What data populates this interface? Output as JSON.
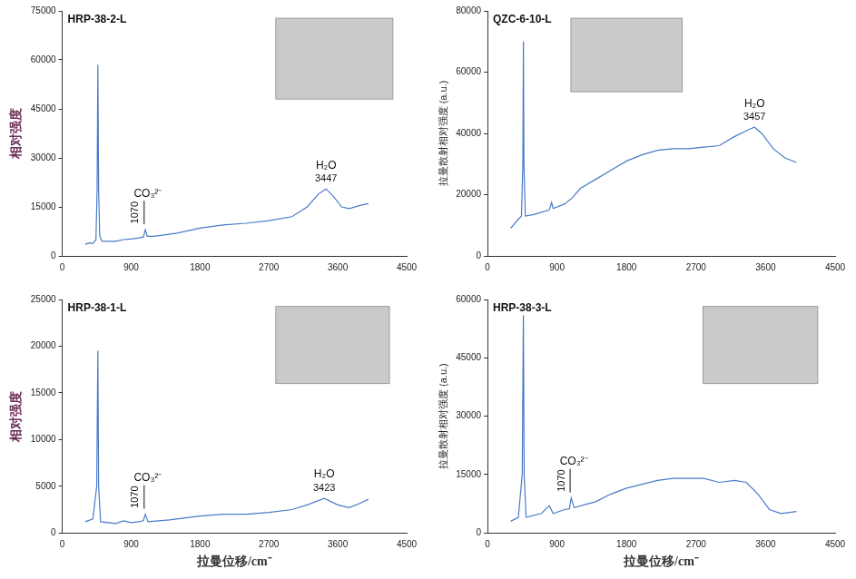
{
  "chart_data": [
    {
      "type": "line",
      "title": "HRP-38-2-L",
      "y_label": "相对强度",
      "color": "#4a7ac8",
      "grid": false,
      "x": [
        300,
        350,
        400,
        440,
        455,
        465,
        475,
        490,
        520,
        600,
        700,
        800,
        900,
        1000,
        1060,
        1085,
        1110,
        1200,
        1500,
        1800,
        2100,
        2400,
        2700,
        3000,
        3200,
        3350,
        3447,
        3550,
        3650,
        3750,
        3900,
        4000
      ],
      "values": [
        3500,
        4000,
        3800,
        5000,
        20000,
        58500,
        20000,
        6000,
        4500,
        4500,
        4500,
        5000,
        5200,
        5500,
        5800,
        8000,
        6000,
        6000,
        7000,
        8500,
        9500,
        10000,
        10800,
        12000,
        15000,
        19000,
        20500,
        18000,
        15000,
        14500,
        15500,
        16000
      ],
      "xlim": [
        0,
        4500
      ],
      "xticks": [
        0,
        900,
        1800,
        2700,
        3600,
        4500
      ],
      "ylim": [
        0,
        75000
      ],
      "yticks": [
        0,
        15000,
        30000,
        45000,
        60000,
        75000
      ],
      "annotations": [
        {
          "text": "CO₃²⁻",
          "x": 1070,
          "marker": "line"
        },
        {
          "text": "H₂O",
          "x": 3447
        }
      ]
    },
    {
      "type": "line",
      "title": "QZC-6-10-L",
      "y_label": "拉曼散射相对强度 (a.u.)",
      "color": "#4a7ac8",
      "grid": false,
      "x": [
        300,
        400,
        440,
        458,
        465,
        472,
        490,
        600,
        800,
        830,
        850,
        1000,
        1100,
        1200,
        1400,
        1600,
        1800,
        2000,
        2200,
        2400,
        2600,
        2800,
        3000,
        3200,
        3400,
        3457,
        3550,
        3700,
        3850,
        4000
      ],
      "values": [
        9000,
        12000,
        13000,
        30000,
        70000,
        30000,
        13000,
        13500,
        15000,
        17500,
        15500,
        17000,
        19000,
        22000,
        25000,
        28000,
        31000,
        33000,
        34500,
        35000,
        35000,
        35500,
        36000,
        39000,
        41500,
        42000,
        40000,
        35000,
        32000,
        30500
      ],
      "xlim": [
        0,
        4500
      ],
      "xticks": [
        0,
        900,
        1800,
        2700,
        3600,
        4500
      ],
      "ylim": [
        0,
        80000
      ],
      "yticks": [
        0,
        20000,
        40000,
        60000,
        80000
      ],
      "annotations": [
        {
          "text": "H₂O",
          "x": 3457
        }
      ]
    },
    {
      "type": "line",
      "title": "HRP-38-1-L",
      "y_label": "相对强度",
      "x_label": "拉曼位移/cm⁻",
      "color": "#4a7ac8",
      "grid": false,
      "x": [
        300,
        400,
        450,
        465,
        475,
        500,
        700,
        800,
        900,
        1000,
        1060,
        1085,
        1120,
        1400,
        1800,
        2100,
        2400,
        2700,
        3000,
        3200,
        3423,
        3600,
        3750,
        3900,
        4000
      ],
      "values": [
        1200,
        1500,
        5000,
        19500,
        5000,
        1200,
        1000,
        1300,
        1100,
        1200,
        1300,
        2000,
        1200,
        1400,
        1800,
        2000,
        2000,
        2200,
        2500,
        3000,
        3700,
        3000,
        2700,
        3200,
        3600
      ],
      "xlim": [
        0,
        4500
      ],
      "xticks": [
        0,
        900,
        1800,
        2700,
        3600,
        4500
      ],
      "ylim": [
        0,
        25000
      ],
      "yticks": [
        0,
        5000,
        10000,
        15000,
        20000,
        25000
      ],
      "annotations": [
        {
          "text": "CO₃²⁻",
          "x": 1070,
          "marker": "line"
        },
        {
          "text": "H₂O",
          "x": 3423
        }
      ]
    },
    {
      "type": "line",
      "title": "HRP-38-3-L",
      "y_label": "拉曼散射相对强度 (a.u.)",
      "x_label": "拉曼位移/cm⁻",
      "color": "#4a7ac8",
      "grid": false,
      "x": [
        300,
        400,
        450,
        465,
        475,
        500,
        700,
        800,
        850,
        1000,
        1060,
        1085,
        1120,
        1400,
        1600,
        1800,
        2000,
        2200,
        2400,
        2600,
        2800,
        3000,
        3200,
        3350,
        3500,
        3650,
        3800,
        4000
      ],
      "values": [
        3000,
        4000,
        15000,
        56000,
        15000,
        4000,
        5000,
        7000,
        5000,
        6000,
        6200,
        9000,
        6500,
        8000,
        10000,
        11500,
        12500,
        13500,
        14000,
        14000,
        14000,
        13000,
        13500,
        13000,
        10000,
        6000,
        5000,
        5500
      ],
      "xlim": [
        0,
        4500
      ],
      "xticks": [
        0,
        900,
        1800,
        2700,
        3600,
        4500
      ],
      "ylim": [
        0,
        60000
      ],
      "yticks": [
        0,
        15000,
        30000,
        45000,
        60000
      ],
      "annotations": [
        {
          "text": "CO₃²⁻",
          "x": 1070,
          "marker": "line"
        }
      ]
    }
  ]
}
